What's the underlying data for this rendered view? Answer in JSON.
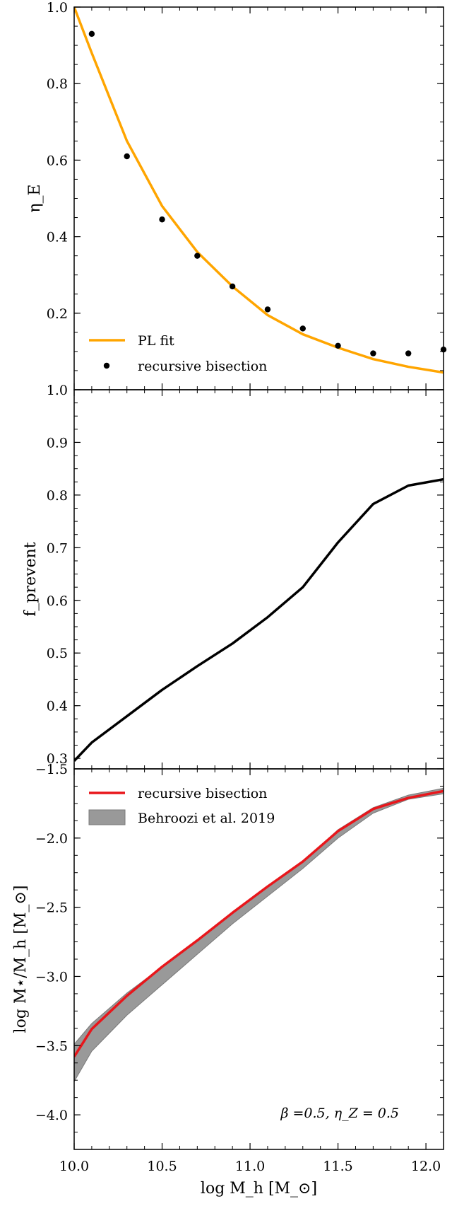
{
  "chart_data": [
    {
      "type": "line",
      "panel": "top",
      "xlim": [
        10.0,
        12.1
      ],
      "ylim": [
        0.0,
        1.0
      ],
      "ylabel": "η_E",
      "yticks": [
        0.2,
        0.4,
        0.6,
        0.8,
        1.0
      ],
      "ytick_labels": [
        "0.2",
        "0.4",
        "0.6",
        "0.8",
        "1.0"
      ],
      "series": [
        {
          "name": "PL fit",
          "style": "line",
          "color": "#FFA500",
          "x": [
            10.0,
            10.1,
            10.3,
            10.5,
            10.7,
            10.9,
            11.1,
            11.3,
            11.5,
            11.7,
            11.9,
            12.1
          ],
          "y": [
            1.0,
            0.88,
            0.65,
            0.48,
            0.36,
            0.27,
            0.195,
            0.145,
            0.11,
            0.08,
            0.06,
            0.045
          ]
        },
        {
          "name": "recursive bisection",
          "style": "scatter",
          "color": "#000000",
          "x": [
            10.1,
            10.3,
            10.5,
            10.7,
            10.9,
            11.1,
            11.3,
            11.5,
            11.7,
            11.9,
            12.1
          ],
          "y": [
            0.93,
            0.61,
            0.445,
            0.35,
            0.27,
            0.21,
            0.16,
            0.115,
            0.095,
            0.095,
            0.105
          ]
        }
      ],
      "legend_position": "bottom-left"
    },
    {
      "type": "line",
      "panel": "middle",
      "xlim": [
        10.0,
        12.1
      ],
      "ylim": [
        0.28,
        1.0
      ],
      "ylabel": "f_prevent",
      "yticks": [
        0.3,
        0.4,
        0.5,
        0.6,
        0.7,
        0.8,
        0.9,
        1.0
      ],
      "ytick_labels": [
        "0.3",
        "0.4",
        "0.5",
        "0.6",
        "0.7",
        "0.8",
        "0.9",
        "1.0"
      ],
      "series": [
        {
          "style": "line",
          "color": "#000000",
          "x": [
            10.0,
            10.1,
            10.3,
            10.5,
            10.7,
            10.9,
            11.1,
            11.3,
            11.5,
            11.7,
            11.9,
            12.1
          ],
          "y": [
            0.295,
            0.33,
            0.38,
            0.43,
            0.475,
            0.518,
            0.568,
            0.625,
            0.71,
            0.783,
            0.818,
            0.83
          ]
        }
      ]
    },
    {
      "type": "area",
      "panel": "bottom",
      "xlim": [
        10.0,
        12.1
      ],
      "ylim": [
        -4.25,
        -1.5
      ],
      "xlabel": "log M_h [M_⊙]",
      "ylabel": "log M⋆/M_h [M_⊙]",
      "yticks": [
        -4.0,
        -3.5,
        -3.0,
        -2.5,
        -2.0,
        -1.5
      ],
      "ytick_labels": [
        "−4.0",
        "−3.5",
        "−3.0",
        "−2.5",
        "−2.0",
        "−1.5"
      ],
      "xticks": [
        10.0,
        10.5,
        11.0,
        11.5,
        12.0
      ],
      "xtick_labels": [
        "10.0",
        "10.5",
        "11.0",
        "11.5",
        "12.0"
      ],
      "series": [
        {
          "name": "recursive bisection",
          "style": "line",
          "color": "#E8161B",
          "x": [
            10.0,
            10.1,
            10.3,
            10.5,
            10.7,
            10.9,
            11.1,
            11.3,
            11.5,
            11.7,
            11.9,
            12.1
          ],
          "y": [
            -3.58,
            -3.38,
            -3.14,
            -2.93,
            -2.74,
            -2.54,
            -2.35,
            -2.17,
            -1.95,
            -1.79,
            -1.71,
            -1.66
          ]
        },
        {
          "name": "Behroozi et al. 2019",
          "style": "band",
          "color": "#999999",
          "x": [
            10.0,
            10.1,
            10.3,
            10.5,
            10.7,
            10.9,
            11.1,
            11.3,
            11.5,
            11.7,
            11.9,
            12.1
          ],
          "y_low": [
            -3.76,
            -3.54,
            -3.28,
            -3.06,
            -2.84,
            -2.62,
            -2.42,
            -2.22,
            -2.0,
            -1.82,
            -1.72,
            -1.68
          ],
          "y_high": [
            -3.49,
            -3.34,
            -3.12,
            -2.93,
            -2.74,
            -2.54,
            -2.35,
            -2.17,
            -1.94,
            -1.78,
            -1.69,
            -1.64
          ]
        }
      ],
      "legend_position": "top-left",
      "annotation": "β =0.5, η_Z = 0.5"
    }
  ]
}
